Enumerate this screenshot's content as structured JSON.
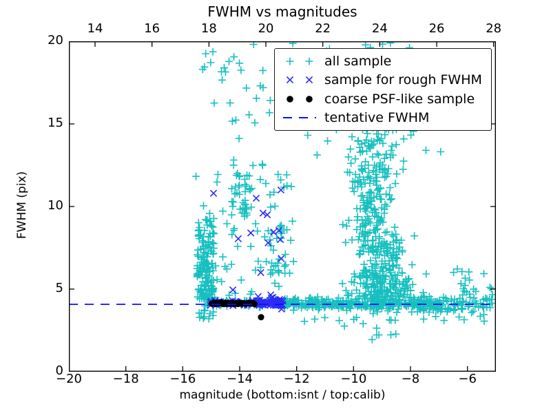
{
  "chart_data": {
    "type": "scatter",
    "title": "FWHM vs magnitudes",
    "xlabel": "magnitude (bottom:isnt / top:calib)",
    "ylabel": "FWHM (pix)",
    "x_axis_bottom": {
      "name": "isnt magnitude",
      "range": [
        -20,
        -5
      ],
      "ticks": [
        -20,
        -18,
        -16,
        -14,
        -12,
        -10,
        -8,
        -6
      ]
    },
    "x_axis_top": {
      "name": "calib magnitude",
      "offset_from_bottom": 33.08,
      "ticks": [
        14,
        16,
        18,
        20,
        22,
        24,
        26,
        28
      ]
    },
    "y_axis": {
      "range": [
        0,
        20
      ],
      "ticks": [
        0,
        5,
        10,
        15,
        20
      ]
    },
    "grid": false,
    "legend_position": "upper right",
    "tentative_fwhm_pix": 4.08,
    "marker_style": {
      "plus_halfsize": 5.5,
      "x_halfsize": 4.6,
      "dot_radius": 4.6,
      "stroke_width": 1.6,
      "dash_pattern": [
        13,
        10
      ]
    },
    "series": [
      {
        "name": "all sample",
        "marker": "plus",
        "color": "#17bfbf",
        "seed": 1234,
        "clusters": [
          {
            "n": 95,
            "xu": [
              -15.5,
              -14.92
            ],
            "yu": [
              4.25,
              6.6
            ]
          },
          {
            "n": 55,
            "xu": [
              -15.5,
              -14.88
            ],
            "yu": [
              6.6,
              9.3
            ]
          },
          {
            "n": 12,
            "xu": [
              -15.45,
              -14.9
            ],
            "yu": [
              3.15,
              4.0
            ]
          },
          {
            "n": 25,
            "xu": [
              -15.6,
              -12.1
            ],
            "yu": [
              9.4,
              12.0
            ]
          },
          {
            "n": 20,
            "xn": [
              -13.9,
              0.5
            ],
            "yu": [
              12.0,
              19.5
            ]
          },
          {
            "n": 8,
            "xu": [
              -15.3,
              -14.4
            ],
            "yu": [
              17.0,
              19.9
            ]
          },
          {
            "n": 10,
            "xu": [
              -14.5,
              -11.6
            ],
            "yu": [
              16.5,
              19.9
            ]
          },
          {
            "n": 32,
            "xu": [
              -14.35,
              -13.55
            ],
            "yu": [
              9.2,
              12.2
            ]
          },
          {
            "n": 26,
            "xu": [
              -13.15,
              -12.2
            ],
            "yu": [
              5.8,
              8.9
            ]
          },
          {
            "n": 42,
            "xu": [
              -15.45,
              -12.1
            ],
            "yu": [
              4.4,
              9.4
            ]
          },
          {
            "n": 60,
            "xu": [
              -15.2,
              -12.0
            ],
            "yn": [
              4.15,
              0.12
            ]
          },
          {
            "n": 150,
            "xu": [
              -12.45,
              -9.6
            ],
            "yn": [
              4.12,
              0.16
            ]
          },
          {
            "n": 185,
            "xu": [
              -9.6,
              -6.3
            ],
            "yn": [
              4.1,
              0.22
            ]
          },
          {
            "n": 150,
            "xn": [
              -8.95,
              0.6
            ],
            "yu": [
              4.35,
              6.0
            ]
          },
          {
            "n": 115,
            "xn": [
              -9.1,
              0.5
            ],
            "yu": [
              6.0,
              8.5
            ]
          },
          {
            "n": 130,
            "xn": [
              -9.3,
              0.42
            ],
            "yu": [
              8.5,
              12.5
            ]
          },
          {
            "n": 52,
            "xn": [
              -9.4,
              0.45
            ],
            "yu": [
              12.5,
              15.5
            ]
          },
          {
            "n": 55,
            "xu": [
              -11.6,
              -7.4
            ],
            "yu": [
              15.5,
              19.9
            ]
          },
          {
            "n": 25,
            "xu": [
              -12.0,
              -6.6
            ],
            "yu": [
              12.0,
              15.5
            ]
          },
          {
            "n": 25,
            "xu": [
              -11.8,
              -6.0
            ],
            "yu": [
              3.0,
              3.95
            ]
          },
          {
            "n": 8,
            "xu": [
              -10.5,
              -8.4
            ],
            "yu": [
              1.6,
              2.95
            ]
          },
          {
            "n": 50,
            "xu": [
              -6.3,
              -5.1
            ],
            "yn": [
              4.2,
              0.5
            ]
          },
          {
            "n": 8,
            "xu": [
              -6.6,
              -5.2
            ],
            "yu": [
              5.2,
              6.3
            ]
          }
        ]
      },
      {
        "name": "sample for rough FWHM",
        "marker": "x",
        "color": "#2b2bf5",
        "seed": 99,
        "clusters": [
          {
            "n": 55,
            "xu": [
              -15.05,
              -12.6
            ],
            "yn": [
              4.17,
              0.09
            ]
          },
          {
            "n": 38,
            "xu": [
              -13.4,
              -12.48
            ],
            "yn": [
              4.15,
              0.14
            ]
          }
        ],
        "points": [
          [
            -14.92,
            10.8
          ],
          [
            -13.42,
            10.5
          ],
          [
            -12.55,
            11.0
          ],
          [
            -13.18,
            9.6
          ],
          [
            -13.03,
            9.5
          ],
          [
            -13.61,
            8.4
          ],
          [
            -14.05,
            8.05
          ],
          [
            -12.81,
            8.45
          ],
          [
            -12.62,
            8.55
          ],
          [
            -12.57,
            8.0
          ],
          [
            -13.0,
            7.8
          ],
          [
            -12.54,
            6.85
          ],
          [
            -13.26,
            6.0
          ],
          [
            -14.24,
            4.95
          ],
          [
            -12.91,
            4.65
          ],
          [
            -13.35,
            4.55
          ]
        ]
      },
      {
        "name": "coarse PSF-like sample",
        "marker": "dot",
        "color": "#000000",
        "points": [
          [
            -14.98,
            4.12
          ],
          [
            -14.91,
            4.18
          ],
          [
            -14.85,
            4.1
          ],
          [
            -14.78,
            4.16
          ],
          [
            -14.72,
            4.12
          ],
          [
            -14.65,
            4.2
          ],
          [
            -14.58,
            4.1
          ],
          [
            -14.52,
            4.15
          ],
          [
            -14.45,
            4.1
          ],
          [
            -14.39,
            4.18
          ],
          [
            -14.32,
            4.12
          ],
          [
            -14.25,
            4.16
          ],
          [
            -14.19,
            4.1
          ],
          [
            -14.12,
            4.14
          ],
          [
            -14.06,
            4.1
          ],
          [
            -13.99,
            4.17
          ],
          [
            -13.92,
            4.12
          ],
          [
            -13.86,
            4.15
          ],
          [
            -13.79,
            4.1
          ],
          [
            -13.73,
            4.14
          ],
          [
            -13.66,
            4.18
          ],
          [
            -13.6,
            4.12
          ],
          [
            -13.53,
            4.15
          ],
          [
            -13.48,
            4.1
          ],
          [
            -13.25,
            3.3
          ]
        ]
      },
      {
        "name": "tentative FWHM",
        "marker": "dash",
        "color": "#0d0dff",
        "hline": 4.08
      }
    ]
  },
  "colors": {
    "spine": "#000000",
    "text": "#000000",
    "background": "#ffffff"
  }
}
